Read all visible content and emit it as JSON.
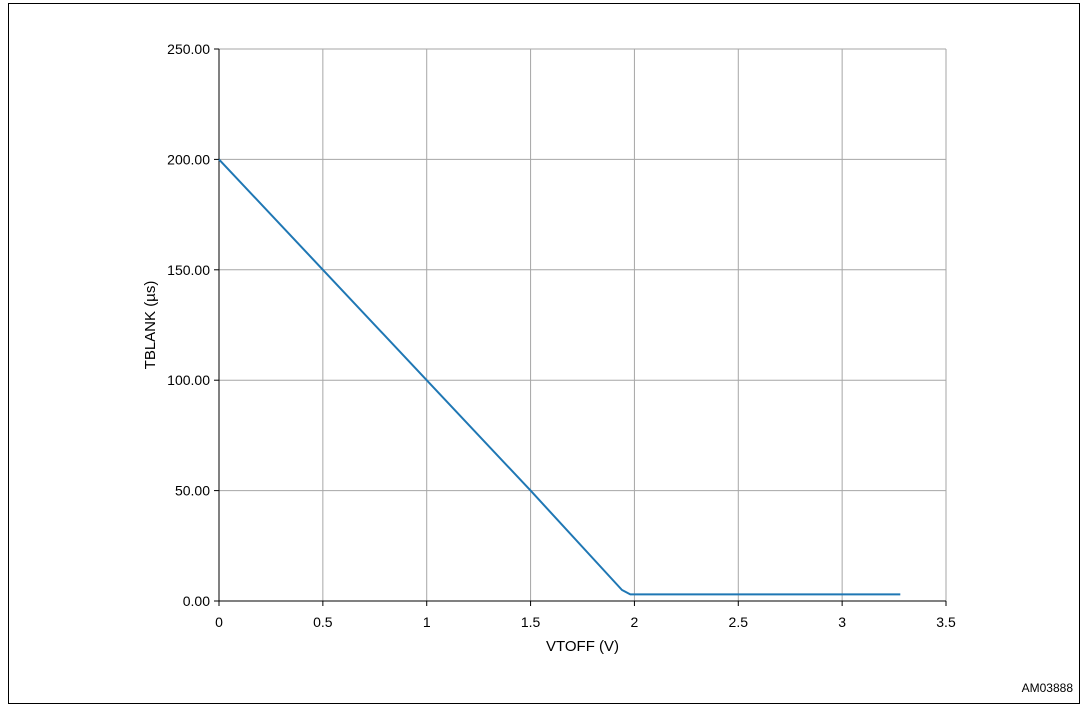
{
  "figure_id": "AM03888",
  "chart_data": {
    "type": "line",
    "title": "",
    "xlabel": "VTOFF  (V)",
    "ylabel": "TBLANK  (µs)",
    "xlim": [
      0,
      3.5
    ],
    "ylim": [
      0,
      250
    ],
    "xticks": [
      0,
      0.5,
      1,
      1.5,
      2,
      2.5,
      3,
      3.5
    ],
    "xtick_labels": [
      "0",
      "0.5",
      "1",
      "1.5",
      "2",
      "2.5",
      "3",
      "3.5"
    ],
    "yticks": [
      0,
      50,
      100,
      150,
      200,
      250
    ],
    "ytick_labels": [
      "0.00",
      "50.00",
      "100.00",
      "150.00",
      "200.00",
      "250.00"
    ],
    "grid": true,
    "series": [
      {
        "color": "#1f77b4",
        "x": [
          0,
          0.5,
          1.0,
          1.5,
          1.94,
          1.98,
          2.5,
          3.0,
          3.28
        ],
        "y": [
          200,
          150,
          100,
          50,
          5,
          3,
          3,
          3,
          3
        ]
      }
    ]
  }
}
